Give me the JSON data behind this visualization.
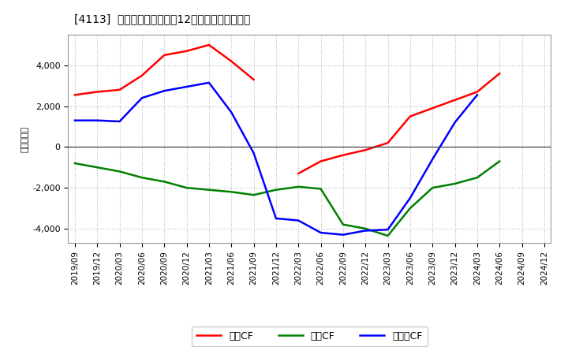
{
  "title": "[4113]  キャッシュフローの12か月移動合計の推移",
  "ylabel": "（百万円）",
  "x_labels": [
    "2019/09",
    "2019/12",
    "2020/03",
    "2020/06",
    "2020/09",
    "2020/12",
    "2021/03",
    "2021/06",
    "2021/09",
    "2021/12",
    "2022/03",
    "2022/06",
    "2022/09",
    "2022/12",
    "2023/03",
    "2023/06",
    "2023/09",
    "2023/12",
    "2024/03",
    "2024/06",
    "2024/09",
    "2024/12"
  ],
  "operating_cf": [
    2550,
    2700,
    2800,
    3500,
    4500,
    4700,
    5000,
    4200,
    3300,
    null,
    -1300,
    -700,
    -400,
    -150,
    200,
    1500,
    1900,
    2300,
    2700,
    3600,
    null,
    null
  ],
  "investing_cf": [
    -800,
    -1000,
    -1200,
    -1500,
    -1700,
    -2000,
    -2100,
    -2200,
    -2350,
    -2100,
    -1950,
    -2050,
    -3800,
    -4000,
    -4350,
    -3000,
    -2000,
    -1800,
    -1500,
    -700,
    null,
    null
  ],
  "free_cf": [
    1300,
    1300,
    1250,
    2400,
    2750,
    2950,
    3150,
    1700,
    -300,
    -3500,
    -3600,
    -4200,
    -4300,
    -4100,
    -4050,
    -2500,
    -600,
    1200,
    2550,
    null,
    null,
    null
  ],
  "operating_color": "#ff0000",
  "investing_color": "#008000",
  "free_cf_color": "#0000ff",
  "background_color": "#ffffff",
  "plot_bg_color": "#ffffff",
  "ylim": [
    -4700,
    5500
  ],
  "yticks": [
    -4000,
    -2000,
    0,
    2000,
    4000
  ],
  "grid_color": "#bbbbbb",
  "legend_labels": [
    "営業CF",
    "投資CF",
    "フリーCF"
  ]
}
